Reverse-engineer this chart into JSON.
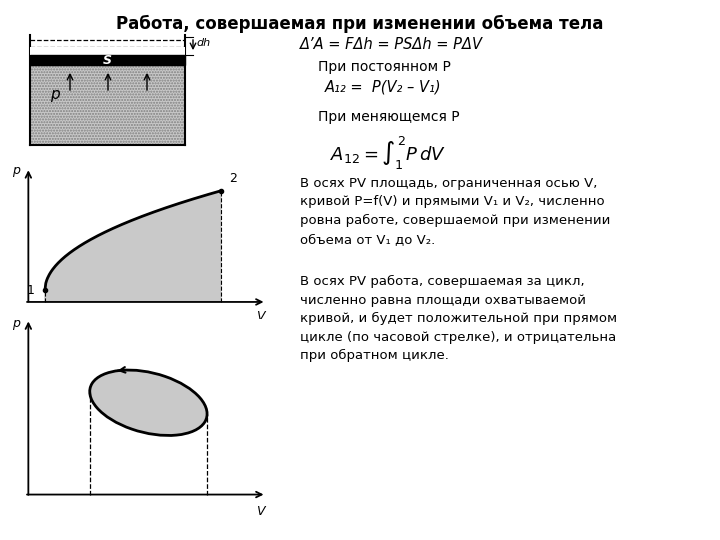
{
  "title": "Работа, совершаемая при изменении объема тела",
  "bg_color": "#ffffff",
  "formula1": "Δ’A = FΔh = PSΔh = PΔV",
  "label_const_p": "При постоянном P",
  "formula2": "A₁₂ =  P(V₂ – V₁)",
  "label_var_p": "При меняющемся P",
  "text1": "В осях PV площадь, ограниченная осью V,\nкривой P=f(V) и прямыми V₁ и V₂, численно\nровна работе, совершаемой при изменении\nобъема от V₁ до V₂.",
  "text2": "В осях PV работа, совершаемая за цикл,\nчисленно равна площади охватываемой\nкривой, и будет положительной при прямом\nцикле (по часовой стрелке), и отрицательна\nпри обратном цикле."
}
